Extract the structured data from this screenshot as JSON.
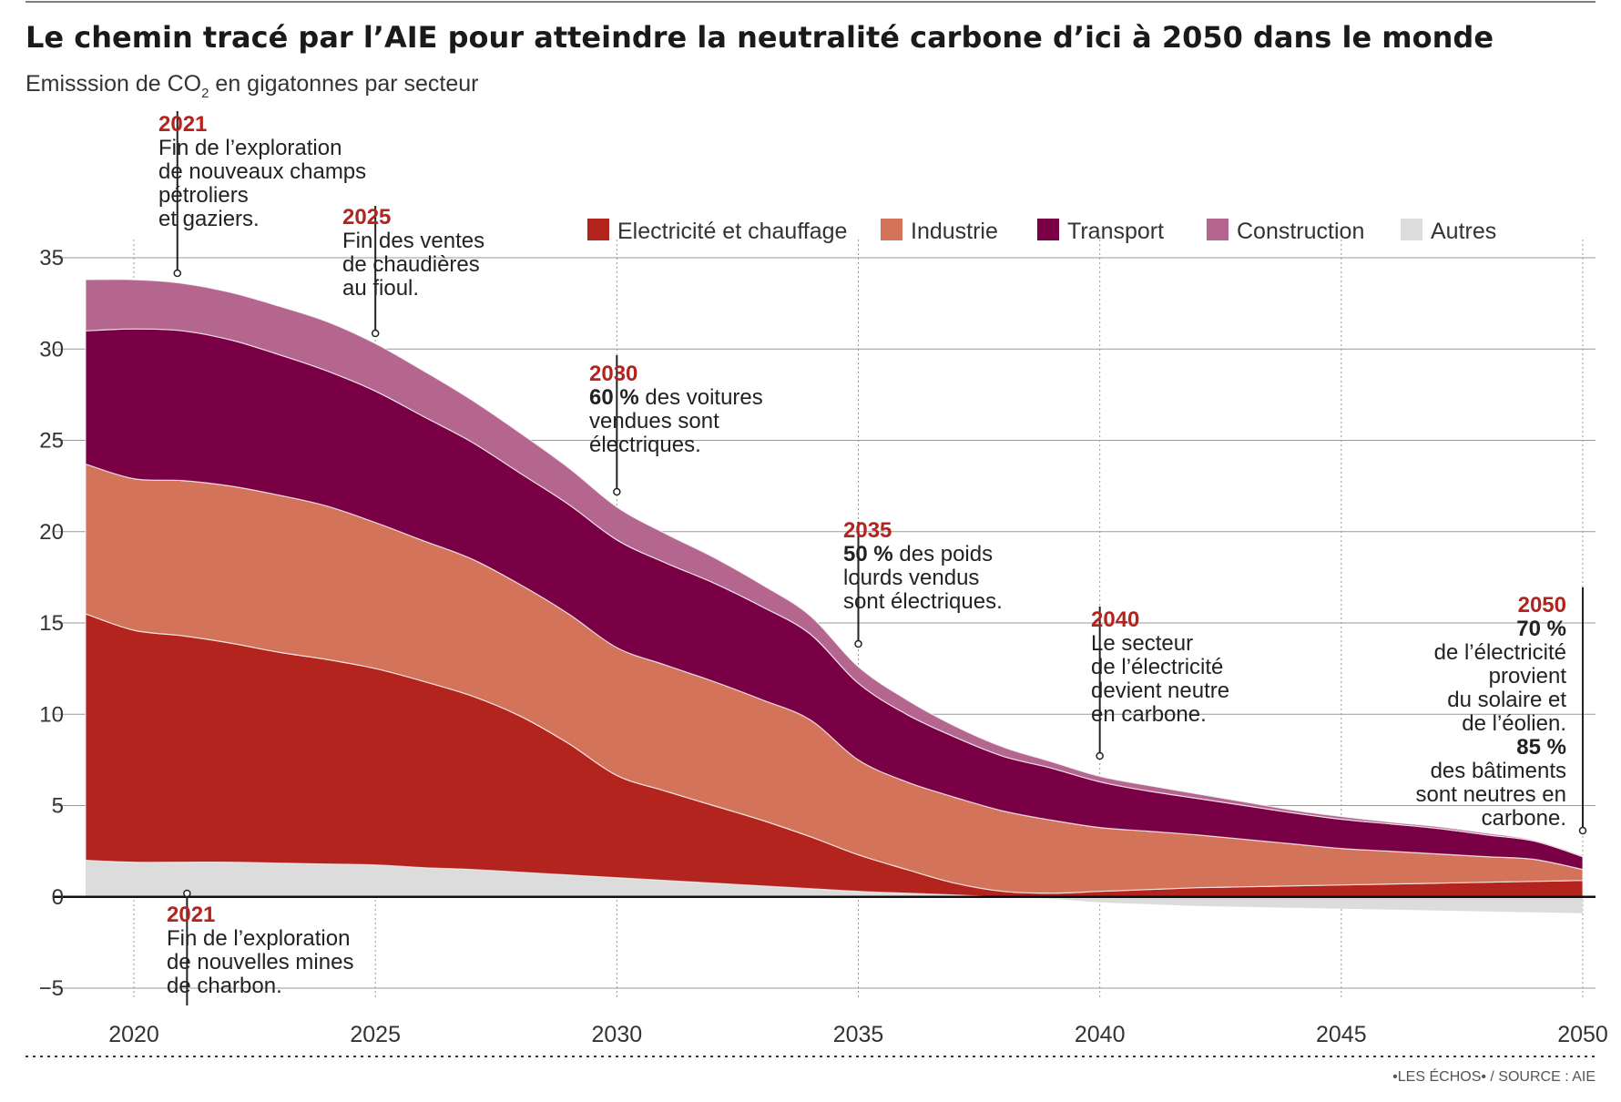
{
  "title": "Le chemin tracé par l’AIE pour atteindre la neutralité carbone d’ici à 2050 dans le monde",
  "subtitle": {
    "before": "Emisssion de CO",
    "sub": "2",
    "after": " en gigatonnes par secteur"
  },
  "source": "•LES ÉCHOS• / SOURCE : AIE",
  "colors": {
    "electricite": "#b3241f",
    "industrie": "#d2735a",
    "transport": "#7a0046",
    "construction": "#b4668f",
    "autres": "#dcdcdc",
    "annotation_year": "#b3241f",
    "axis": "#111111",
    "grid": "#9a9a9a"
  },
  "legend": [
    {
      "key": "electricite",
      "label": "Electricité et chauffage"
    },
    {
      "key": "industrie",
      "label": "Industrie"
    },
    {
      "key": "transport",
      "label": "Transport"
    },
    {
      "key": "construction",
      "label": "Construction"
    },
    {
      "key": "autres",
      "label": "Autres"
    }
  ],
  "chart_data": {
    "type": "area",
    "stacked": true,
    "x": [
      2019,
      2020,
      2021,
      2022,
      2023,
      2024,
      2025,
      2026,
      2027,
      2028,
      2029,
      2030,
      2031,
      2032,
      2033,
      2034,
      2035,
      2036,
      2037,
      2038,
      2039,
      2040,
      2041,
      2042,
      2043,
      2044,
      2045,
      2046,
      2047,
      2048,
      2049,
      2050
    ],
    "xticks": [
      2020,
      2025,
      2030,
      2035,
      2040,
      2045,
      2050
    ],
    "ylim": [
      -5,
      35
    ],
    "yticks": [
      -5,
      0,
      5,
      10,
      15,
      20,
      25,
      30,
      35
    ],
    "ytick_labels": [
      "−5",
      "0",
      "5",
      "10",
      "15",
      "20",
      "25",
      "30",
      "35"
    ],
    "grid": "horizontal",
    "legend_position": "top-right",
    "series": [
      {
        "name": "Autres",
        "key": "autres",
        "values": [
          2.0,
          1.9,
          1.9,
          1.9,
          1.85,
          1.8,
          1.75,
          1.6,
          1.5,
          1.35,
          1.2,
          1.05,
          0.9,
          0.75,
          0.6,
          0.45,
          0.3,
          0.2,
          0.1,
          0.0,
          -0.1,
          -0.3,
          -0.4,
          -0.5,
          -0.55,
          -0.6,
          -0.65,
          -0.7,
          -0.75,
          -0.8,
          -0.85,
          -0.9
        ]
      },
      {
        "name": "Electricité et chauffage",
        "key": "electricite",
        "values": [
          13.5,
          12.7,
          12.4,
          12.0,
          11.55,
          11.2,
          10.75,
          10.2,
          9.5,
          8.55,
          7.2,
          5.6,
          4.9,
          4.25,
          3.6,
          2.85,
          2.0,
          1.3,
          0.65,
          0.3,
          0.2,
          0.3,
          0.4,
          0.5,
          0.55,
          0.6,
          0.65,
          0.7,
          0.75,
          0.8,
          0.85,
          0.9
        ]
      },
      {
        "name": "Industrie",
        "key": "industrie",
        "values": [
          8.2,
          8.3,
          8.5,
          8.6,
          8.6,
          8.4,
          8.0,
          7.7,
          7.5,
          7.2,
          7.1,
          7.0,
          6.9,
          6.8,
          6.6,
          6.4,
          5.2,
          4.8,
          4.7,
          4.4,
          4.0,
          3.5,
          3.2,
          2.9,
          2.6,
          2.3,
          2.0,
          1.8,
          1.6,
          1.4,
          1.2,
          0.6
        ]
      },
      {
        "name": "Transport",
        "key": "transport",
        "values": [
          7.3,
          8.2,
          8.2,
          8.0,
          7.7,
          7.4,
          7.2,
          6.8,
          6.4,
          6.1,
          6.0,
          5.9,
          5.6,
          5.4,
          5.1,
          4.7,
          4.2,
          3.7,
          3.3,
          3.0,
          2.85,
          2.5,
          2.2,
          2.0,
          1.85,
          1.7,
          1.6,
          1.5,
          1.4,
          1.2,
          1.0,
          0.7
        ]
      },
      {
        "name": "Construction",
        "key": "construction",
        "values": [
          2.8,
          2.7,
          2.6,
          2.6,
          2.65,
          2.7,
          2.6,
          2.5,
          2.3,
          2.2,
          2.0,
          1.8,
          1.6,
          1.4,
          1.2,
          1.0,
          0.9,
          0.8,
          0.6,
          0.5,
          0.35,
          0.3,
          0.3,
          0.25,
          0.2,
          0.15,
          0.15,
          0.1,
          0.1,
          0.1,
          0.05,
          0.05
        ]
      }
    ],
    "annotations": [
      {
        "year": "2021",
        "lines": [
          {
            "t": "Fin de l’exploration"
          },
          {
            "t": "de nouveaux champs"
          },
          {
            "t": "pétroliers"
          },
          {
            "t": "et gaziers."
          }
        ]
      },
      {
        "year": "2025",
        "lines": [
          {
            "t": "Fin des ventes"
          },
          {
            "t": "de chaudières"
          },
          {
            "t": "au fioul."
          }
        ]
      },
      {
        "year": "2030",
        "lines": [
          {
            "b": "60 %",
            "t": " des voitures"
          },
          {
            "t": "vendues sont"
          },
          {
            "t": "électriques."
          }
        ]
      },
      {
        "year": "2035",
        "lines": [
          {
            "b": "50 %",
            "t": " des poids"
          },
          {
            "t": "lourds vendus"
          },
          {
            "t": "sont électriques."
          }
        ]
      },
      {
        "year": "2040",
        "lines": [
          {
            "t": "Le secteur"
          },
          {
            "t": "de l’électricité"
          },
          {
            "t": "devient neutre"
          },
          {
            "t": "en carbone."
          }
        ]
      },
      {
        "year": "2050",
        "lines": [
          {
            "b": "70 %"
          },
          {
            "t": "de l’électricité"
          },
          {
            "t": "provient"
          },
          {
            "t": "du solaire et"
          },
          {
            "t": "de l’éolien."
          },
          {
            "b": "85 %"
          },
          {
            "t": "des bâtiments"
          },
          {
            "t": "sont neutres en"
          },
          {
            "t": "carbone."
          }
        ]
      },
      {
        "year": "2021",
        "lines": [
          {
            "t": "Fin de l’exploration"
          },
          {
            "t": "de nouvelles mines"
          },
          {
            "t": "de charbon."
          }
        ]
      }
    ]
  }
}
